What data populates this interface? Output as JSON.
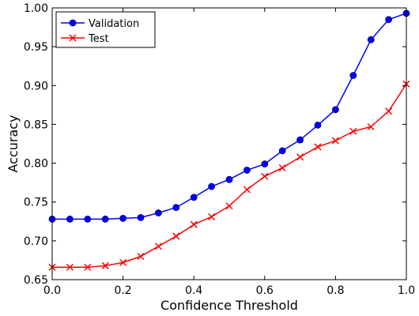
{
  "chart_data": {
    "type": "line",
    "xlabel": "Confidence Threshold",
    "ylabel": "Accuracy",
    "xlim": [
      0.0,
      1.0
    ],
    "ylim": [
      0.65,
      1.0
    ],
    "xticks": [
      "0.0",
      "0.2",
      "0.4",
      "0.6",
      "0.8",
      "1.0"
    ],
    "yticks": [
      "0.65",
      "0.70",
      "0.75",
      "0.80",
      "0.85",
      "0.90",
      "0.95",
      "1.00"
    ],
    "grid": false,
    "legend_position": "top-left",
    "x": [
      0.0,
      0.05,
      0.1,
      0.15,
      0.2,
      0.25,
      0.3,
      0.35,
      0.4,
      0.45,
      0.5,
      0.55,
      0.6,
      0.65,
      0.7,
      0.75,
      0.8,
      0.85,
      0.9,
      0.95,
      1.0
    ],
    "series": [
      {
        "name": "Validation",
        "color": "#0000ff",
        "marker": "circle",
        "values": [
          0.728,
          0.728,
          0.728,
          0.728,
          0.729,
          0.73,
          0.736,
          0.743,
          0.756,
          0.77,
          0.779,
          0.791,
          0.799,
          0.816,
          0.83,
          0.849,
          0.869,
          0.913,
          0.959,
          0.985,
          0.993
        ]
      },
      {
        "name": "Test",
        "color": "#ff0000",
        "marker": "x",
        "values": [
          0.666,
          0.666,
          0.666,
          0.668,
          0.672,
          0.68,
          0.693,
          0.706,
          0.721,
          0.731,
          0.745,
          0.766,
          0.783,
          0.794,
          0.808,
          0.821,
          0.829,
          0.841,
          0.847,
          0.867,
          0.902
        ]
      }
    ]
  }
}
